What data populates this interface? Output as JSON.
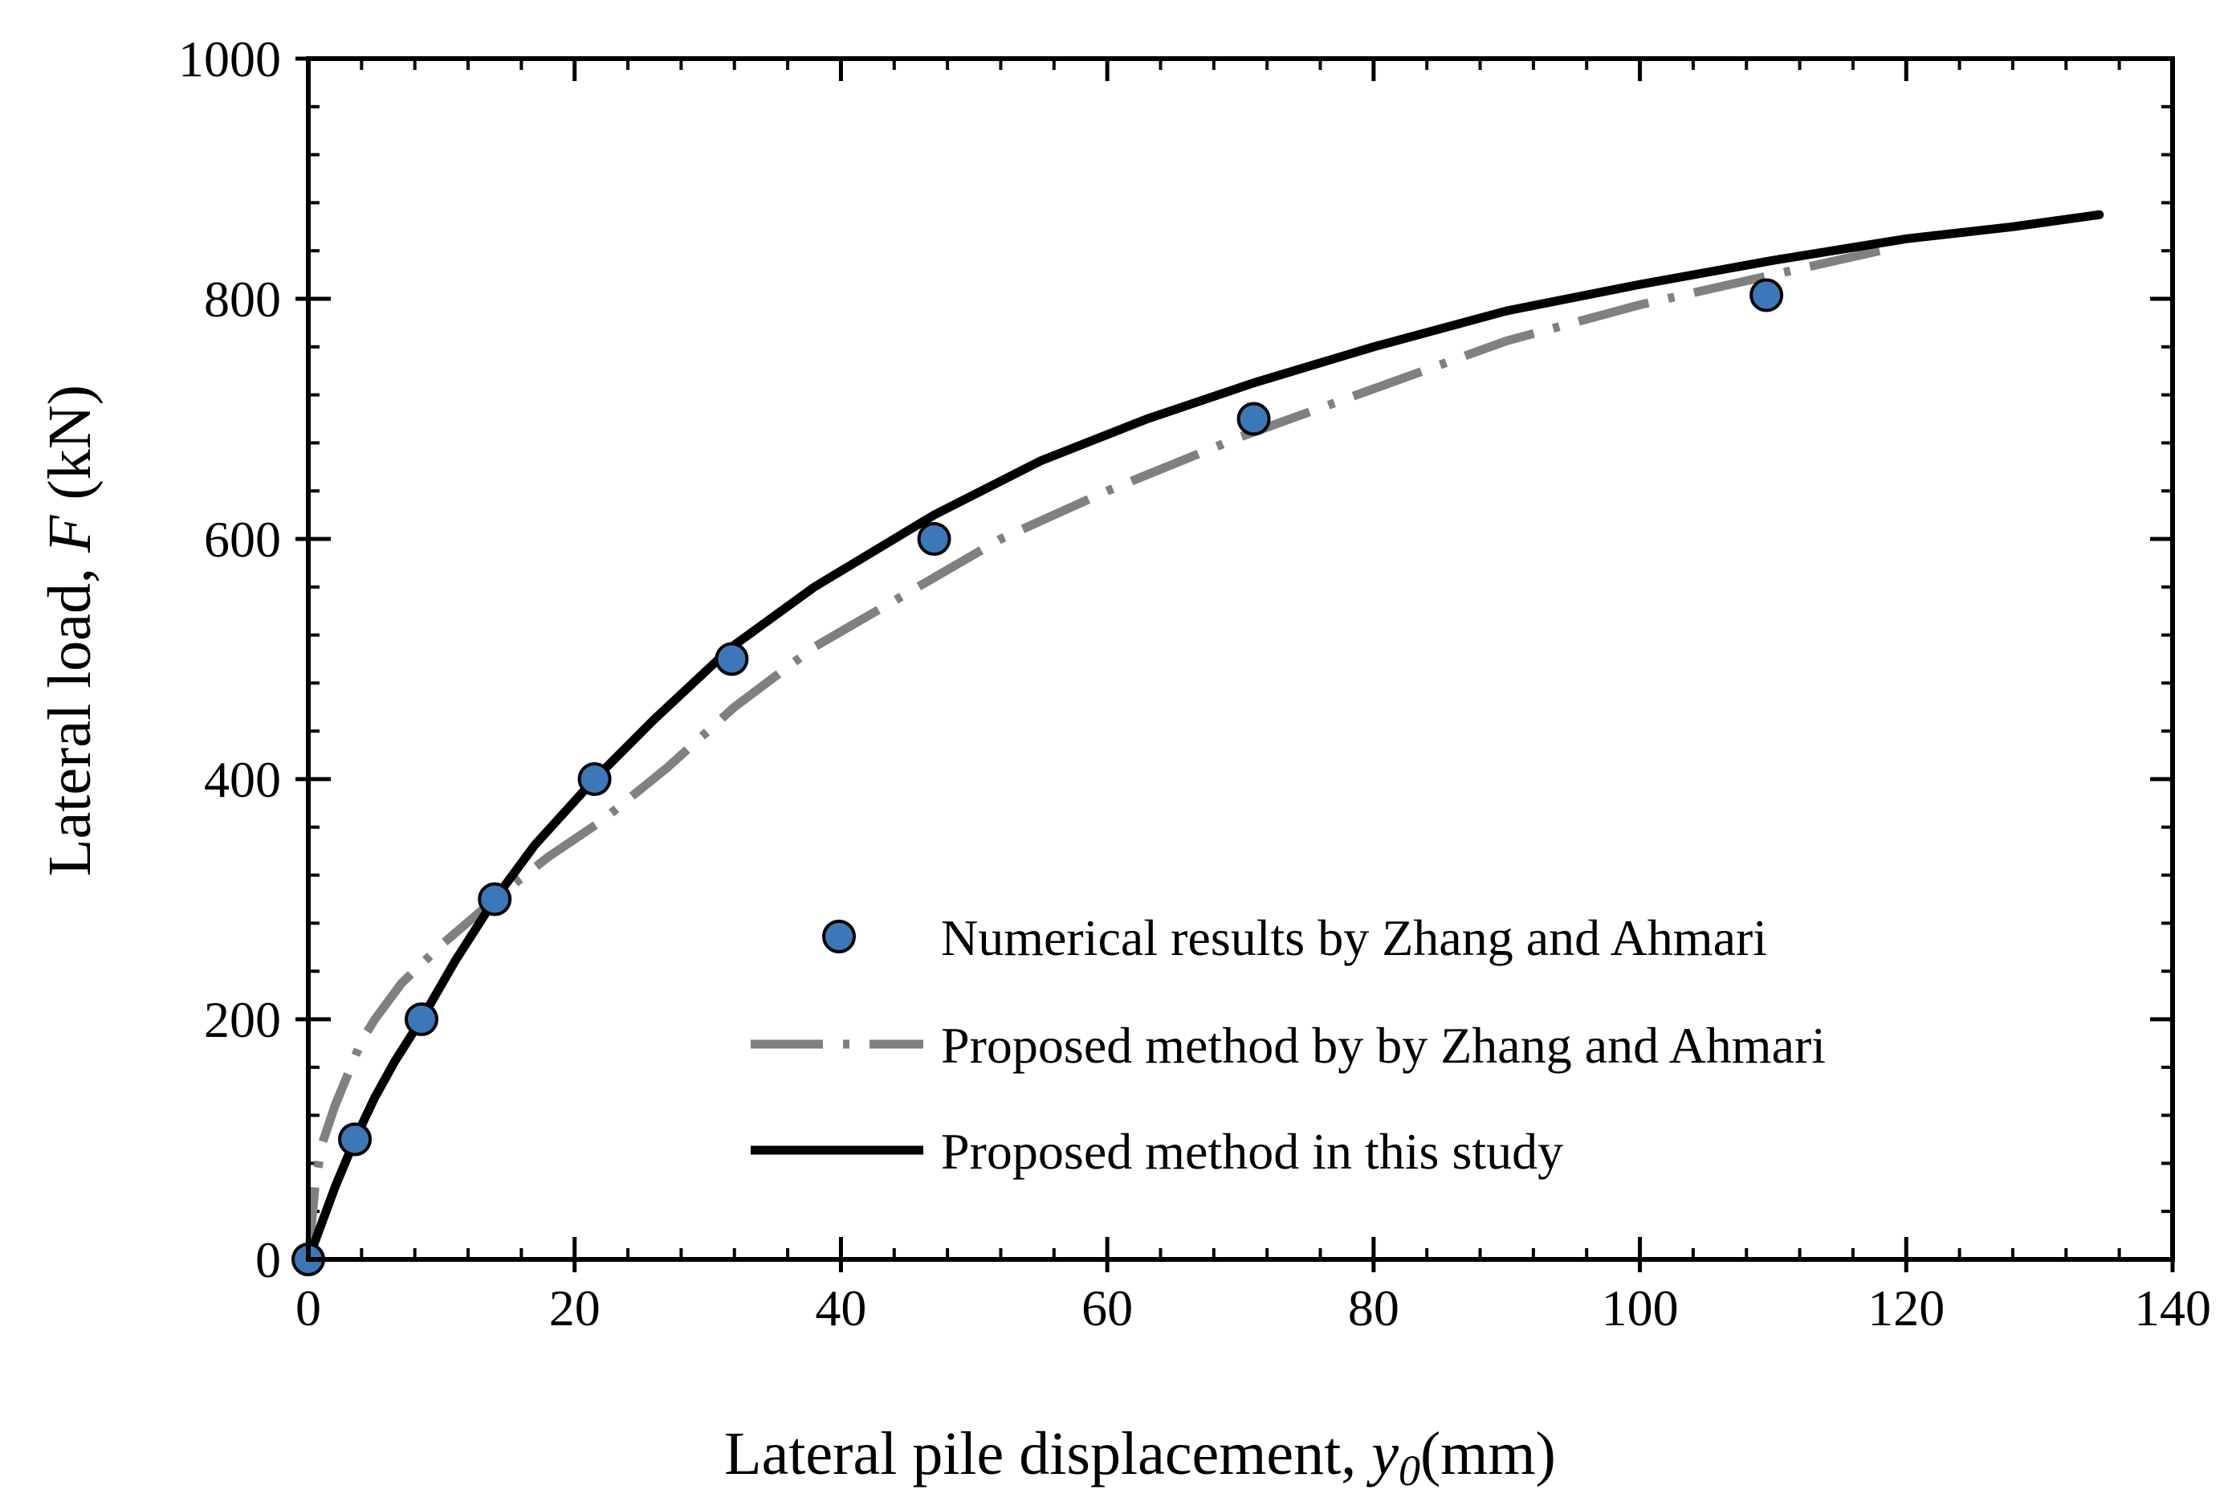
{
  "chart_data": {
    "type": "scatter",
    "xlabel": {
      "prefix": "Lateral pile displacement, ",
      "symbol": "y",
      "subscript": "0",
      "suffix": "(mm)"
    },
    "ylabel": {
      "prefix": "Lateral load, ",
      "symbol": "F",
      "suffix": " (kN)"
    },
    "xlim": [
      0,
      140
    ],
    "ylim": [
      0,
      1000
    ],
    "x_ticks": [
      0,
      20,
      40,
      60,
      80,
      100,
      120,
      140
    ],
    "y_ticks": [
      0,
      200,
      400,
      600,
      800,
      1000
    ],
    "x_minor_step": 4,
    "y_minor_step": 40,
    "grid": false,
    "legend_position": "bottom-right",
    "series": [
      {
        "name": "Numerical results by Zhang and Ahmari",
        "kind": "markers",
        "color": "#3b78b8",
        "x": [
          0,
          3.5,
          8.5,
          14,
          21.5,
          31.8,
          47,
          71,
          109.5
        ],
        "y": [
          0,
          100,
          200,
          300,
          400,
          500,
          600,
          700,
          803
        ]
      },
      {
        "name": "Proposed method by by Zhang and Ahmari",
        "kind": "dash-dot",
        "color": "#808080",
        "x": [
          0,
          0.5,
          1,
          2,
          3,
          4,
          5,
          7,
          10,
          14,
          18,
          22,
          27,
          32,
          38,
          45,
          52,
          60,
          70,
          80,
          90,
          100,
          110,
          118
        ],
        "y": [
          0,
          60,
          95,
          128,
          155,
          182,
          200,
          230,
          262,
          300,
          335,
          365,
          410,
          460,
          510,
          555,
          600,
          640,
          685,
          725,
          765,
          795,
          820,
          840
        ]
      },
      {
        "name": "Proposed method in this study",
        "kind": "solid",
        "color": "#000000",
        "x": [
          0,
          1,
          2,
          3.5,
          5,
          6.5,
          8.5,
          11,
          14,
          17,
          21.5,
          26,
          31.8,
          38,
          47,
          55,
          63,
          71,
          80,
          90,
          100,
          110,
          120,
          128,
          134.5
        ],
        "y": [
          0,
          30,
          60,
          100,
          135,
          165,
          200,
          248,
          300,
          345,
          400,
          450,
          510,
          560,
          620,
          665,
          700,
          730,
          760,
          790,
          812,
          832,
          850,
          860,
          870
        ]
      }
    ]
  }
}
